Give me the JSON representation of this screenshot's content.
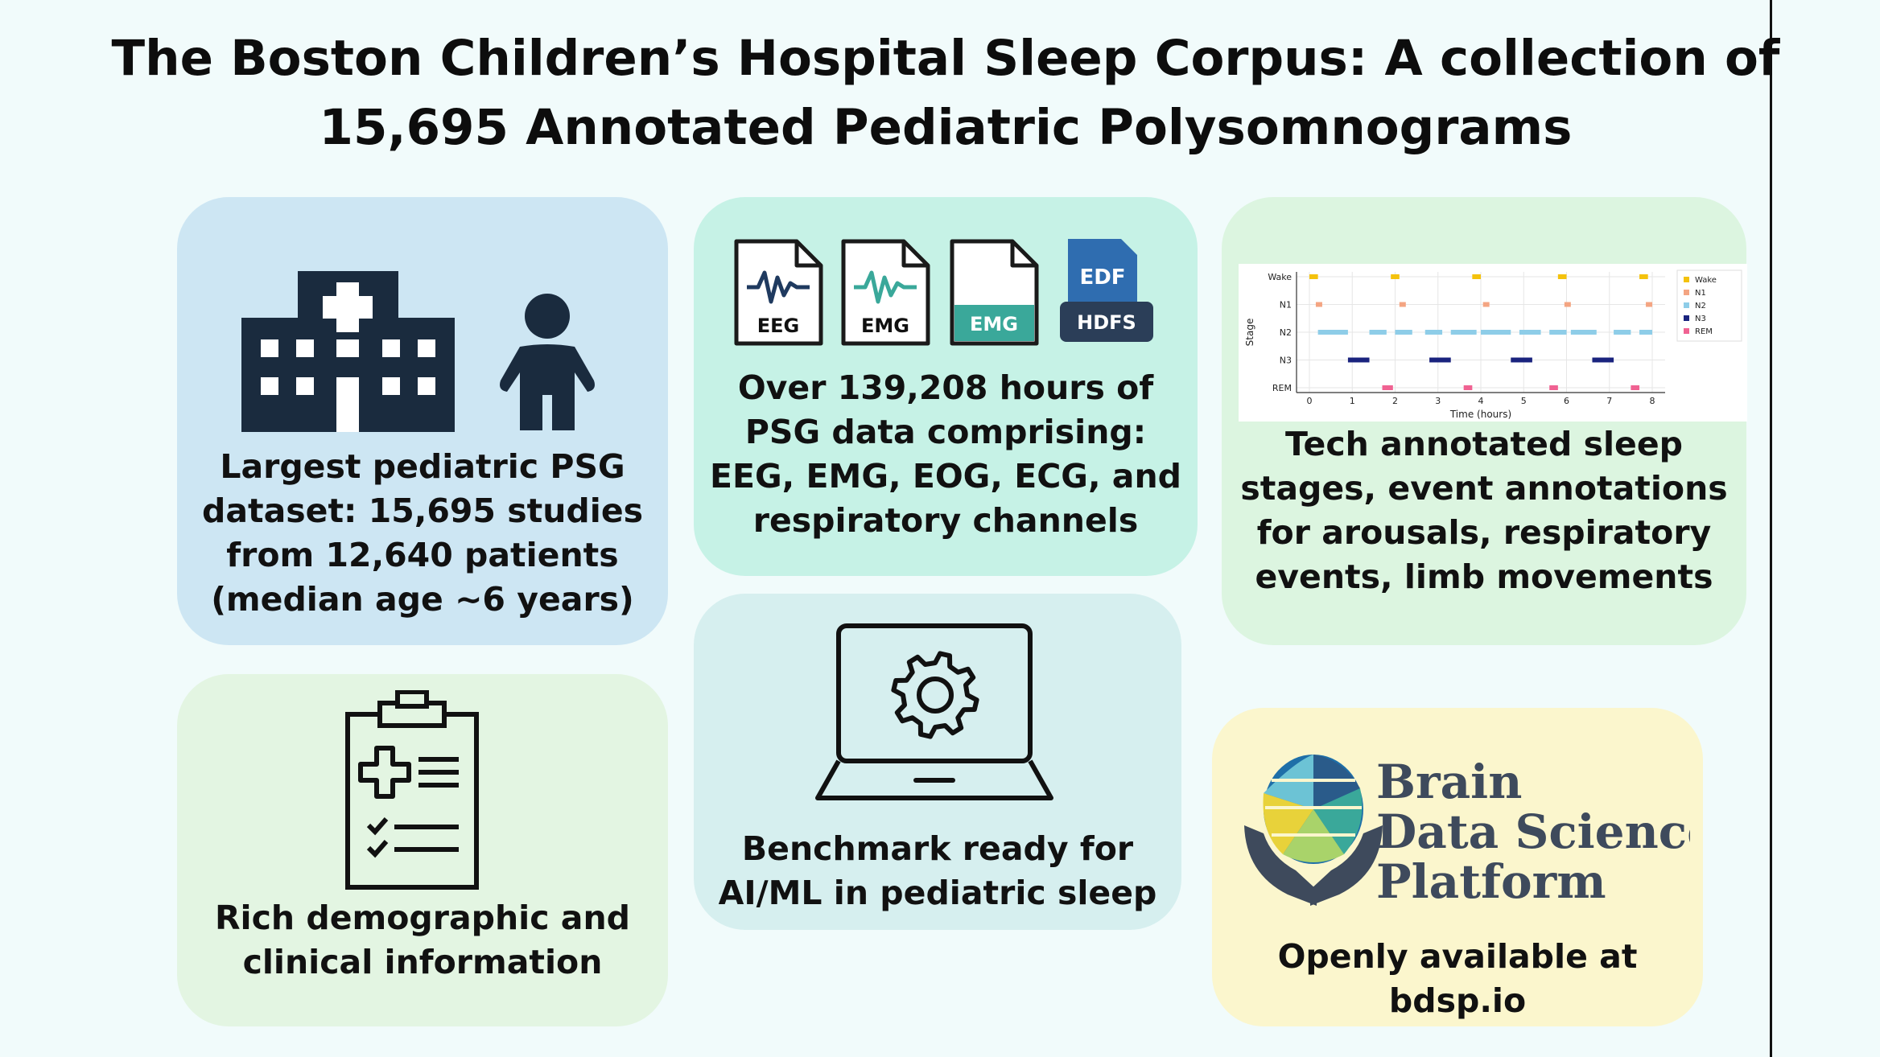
{
  "title": "The Boston Children’s Hospital Sleep Corpus: A collection of 15,695 Annotated Pediatric Polysomnograms",
  "cards": {
    "dataset": {
      "lines": [
        "Largest pediatric PSG",
        "dataset: 15,695 studies",
        "from 12,640 patients",
        "(median age ~6 years)"
      ],
      "icons": [
        "hospital-icon",
        "child-icon"
      ]
    },
    "channels": {
      "lines": [
        "Over 139,208 hours of",
        "PSG data comprising:",
        "EEG, EMG, EOG, ECG, and",
        "respiratory channels"
      ],
      "file_icons": [
        "EEG",
        "EMG",
        "EMG"
      ],
      "badge_top": "EDF",
      "badge_bottom": "HDFS"
    },
    "annotations": {
      "lines": [
        "Tech annotated sleep",
        "stages, event annotations",
        "for arousals, respiratory",
        "events, limb movements"
      ]
    },
    "clinical": {
      "lines": [
        "Rich demographic and",
        "clinical information"
      ],
      "icons": [
        "clipboard-icon"
      ]
    },
    "benchmark": {
      "lines": [
        "Benchmark ready for",
        "AI/ML in pediatric sleep"
      ],
      "icons": [
        "laptop-gear-icon"
      ]
    },
    "availability": {
      "logo_words": [
        "Brain",
        "Data Science",
        "Platform"
      ],
      "lines": [
        "Openly available at",
        "bdsp.io"
      ]
    }
  },
  "chart_data": {
    "type": "scatter",
    "title": "",
    "xlabel": "Time (hours)",
    "ylabel": "Stage",
    "xlim": [
      -0.3,
      8.3
    ],
    "categories": [
      "Wake",
      "N1",
      "N2",
      "N3",
      "REM"
    ],
    "xticks": [
      "0",
      "1",
      "2",
      "3",
      "4",
      "5",
      "6",
      "7",
      "8"
    ],
    "grid": true,
    "legend_position": "top-right",
    "series": [
      {
        "name": "Wake",
        "color": "#f4c20d",
        "segments": [
          [
            0.0,
            0.2
          ],
          [
            1.9,
            2.1
          ],
          [
            3.8,
            4.0
          ],
          [
            5.8,
            6.0
          ],
          [
            7.7,
            7.9
          ]
        ]
      },
      {
        "name": "N1",
        "color": "#f4a582",
        "segments": [
          [
            0.15,
            0.3
          ],
          [
            2.1,
            2.25
          ],
          [
            4.05,
            4.2
          ],
          [
            5.95,
            6.1
          ],
          [
            7.85,
            8.0
          ]
        ]
      },
      {
        "name": "N2",
        "color": "#8ecde8",
        "segments": [
          [
            0.2,
            0.9
          ],
          [
            1.4,
            1.8
          ],
          [
            2.0,
            2.4
          ],
          [
            2.7,
            3.1
          ],
          [
            3.3,
            3.9
          ],
          [
            4.0,
            4.7
          ],
          [
            4.9,
            5.4
          ],
          [
            5.6,
            6.0
          ],
          [
            6.1,
            6.7
          ],
          [
            7.1,
            7.5
          ],
          [
            7.7,
            8.0
          ]
        ]
      },
      {
        "name": "N3",
        "color": "#1a237e",
        "segments": [
          [
            0.9,
            1.4
          ],
          [
            2.8,
            3.3
          ],
          [
            4.7,
            5.2
          ],
          [
            6.6,
            7.1
          ]
        ]
      },
      {
        "name": "REM",
        "color": "#f06292",
        "segments": [
          [
            1.7,
            1.95
          ],
          [
            3.6,
            3.8
          ],
          [
            5.6,
            5.8
          ],
          [
            7.5,
            7.7
          ]
        ]
      }
    ]
  }
}
